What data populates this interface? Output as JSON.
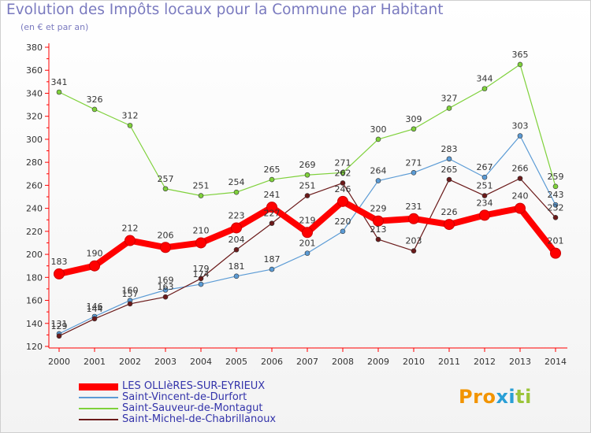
{
  "title": "Evolution des Impôts locaux pour la Commune par Habitant",
  "subtitle": "(en € et par an)",
  "logo": {
    "letters": [
      {
        "ch": "P",
        "color": "#f29400"
      },
      {
        "ch": "r",
        "color": "#f29400"
      },
      {
        "ch": "o",
        "color": "#f29400"
      },
      {
        "ch": "x",
        "color": "#2a9fd6"
      },
      {
        "ch": "i",
        "color": "#2a9fd6"
      },
      {
        "ch": "t",
        "color": "#9bc43a"
      },
      {
        "ch": "i",
        "color": "#9bc43a"
      }
    ]
  },
  "chart_data": {
    "type": "line",
    "title": "Evolution des Impôts locaux pour la Commune par Habitant",
    "ylabel": "(en € et par an)",
    "xlabel": "",
    "categories": [
      "2000",
      "2001",
      "2002",
      "2003",
      "2004",
      "2005",
      "2006",
      "2007",
      "2008",
      "2009",
      "2010",
      "2011",
      "2012",
      "2013",
      "2014"
    ],
    "ylim": [
      120,
      380
    ],
    "yticks": [
      120,
      140,
      160,
      180,
      200,
      220,
      240,
      260,
      280,
      300,
      320,
      340,
      360,
      380
    ],
    "grid": false,
    "legend_position": "bottom-left",
    "series": [
      {
        "name": "LES OLLIèRES-SUR-EYRIEUX",
        "color": "#ff0000",
        "bold": true,
        "values": [
          183,
          190,
          212,
          206,
          210,
          223,
          241,
          219,
          246,
          229,
          231,
          226,
          234,
          240,
          201
        ]
      },
      {
        "name": "Saint-Vincent-de-Durfort",
        "color": "#5b9bd5",
        "bold": false,
        "values": [
          131,
          146,
          160,
          169,
          174,
          181,
          187,
          201,
          220,
          264,
          271,
          283,
          267,
          303,
          243
        ]
      },
      {
        "name": "Saint-Sauveur-de-Montagut",
        "color": "#7fd13b",
        "bold": false,
        "values": [
          341,
          326,
          312,
          257,
          251,
          254,
          265,
          269,
          271,
          300,
          309,
          327,
          344,
          365,
          259
        ]
      },
      {
        "name": "Saint-Michel-de-Chabrillanoux",
        "color": "#6b1a1a",
        "bold": false,
        "values": [
          129,
          144,
          157,
          163,
          179,
          204,
          227,
          251,
          262,
          213,
          203,
          265,
          251,
          266,
          232
        ]
      }
    ]
  }
}
